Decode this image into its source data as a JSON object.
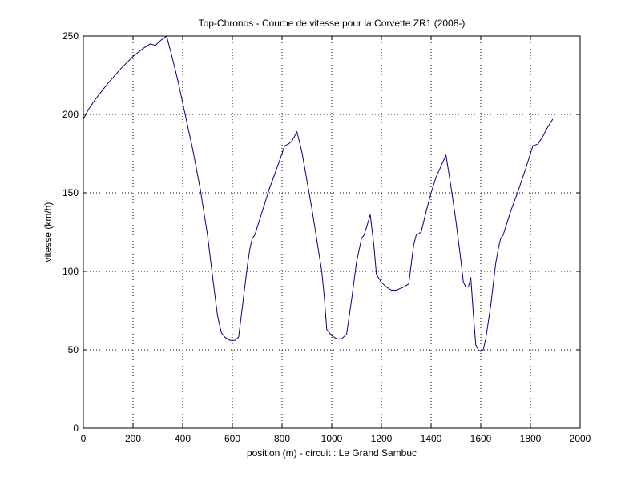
{
  "chart_data": {
    "type": "line",
    "title": "Top-Chronos - Courbe de vitesse pour la Corvette ZR1 (2008-)",
    "xlabel": "position (m) - circuit : Le Grand Sambuc",
    "ylabel": "vitesse (km/h)",
    "xlim": [
      0,
      2000
    ],
    "ylim": [
      0,
      250
    ],
    "xticks": [
      0,
      200,
      400,
      600,
      800,
      1000,
      1200,
      1400,
      1600,
      1800,
      2000
    ],
    "yticks": [
      0,
      50,
      100,
      150,
      200,
      250
    ],
    "grid": true,
    "colors": {
      "line": "#00008b",
      "grid": "#000000",
      "axes": "#000000",
      "background": "#ffffff"
    },
    "series": [
      {
        "x": [
          0,
          20,
          50,
          100,
          150,
          200,
          240,
          270,
          290,
          310,
          335,
          355,
          380,
          410,
          440,
          470,
          500,
          520,
          540,
          555,
          570,
          590,
          610,
          625,
          640,
          660,
          670,
          680,
          690,
          720,
          750,
          780,
          800,
          810,
          825,
          840,
          860,
          880,
          900,
          920,
          940,
          960,
          970,
          980,
          1000,
          1020,
          1040,
          1060,
          1080,
          1100,
          1120,
          1130,
          1140,
          1155,
          1170,
          1180,
          1200,
          1220,
          1240,
          1260,
          1290,
          1310,
          1330,
          1340,
          1360,
          1380,
          1400,
          1420,
          1440,
          1460,
          1480,
          1500,
          1520,
          1530,
          1540,
          1550,
          1560,
          1570,
          1580,
          1590,
          1600,
          1610,
          1620,
          1640,
          1660,
          1670,
          1680,
          1690,
          1720,
          1750,
          1780,
          1800,
          1810,
          1830,
          1850,
          1870,
          1890
        ],
        "y": [
          197,
          203,
          210,
          220,
          229,
          237,
          242,
          245,
          244,
          247,
          250,
          238,
          222,
          200,
          178,
          153,
          123,
          97,
          72,
          61,
          58,
          56,
          56,
          58,
          77,
          103,
          114,
          121,
          123,
          138,
          153,
          166,
          175,
          180,
          181,
          183,
          189,
          176,
          158,
          140,
          120,
          100,
          84,
          63,
          59,
          57,
          57,
          60,
          82,
          106,
          121,
          123,
          128,
          136,
          116,
          98,
          93,
          90,
          88,
          88,
          90,
          92,
          117,
          123,
          125,
          138,
          150,
          160,
          167,
          174,
          154,
          132,
          107,
          93,
          90,
          90,
          96,
          73,
          53,
          50,
          49,
          50,
          57,
          78,
          105,
          114,
          121,
          123,
          138,
          151,
          165,
          175,
          180,
          181,
          186,
          192,
          197
        ]
      }
    ]
  }
}
